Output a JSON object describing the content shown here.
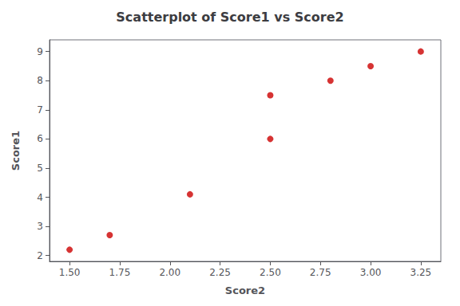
{
  "chart_data": {
    "type": "scatter",
    "title": "Scatterplot of Score1 vs Score2",
    "xlabel": "Score2",
    "ylabel": "Score1",
    "x": [
      1.5,
      1.7,
      2.1,
      2.5,
      2.5,
      2.8,
      3.0,
      3.25
    ],
    "y": [
      2.2,
      2.7,
      4.1,
      7.5,
      6.0,
      8.0,
      8.5,
      9.0
    ],
    "color": "#cc0000",
    "marker": "circle",
    "xlim": [
      1.4,
      3.35
    ],
    "ylim": [
      1.8,
      9.4
    ],
    "xticks": [
      {
        "value": 1.5,
        "label": "1.50"
      },
      {
        "value": 1.75,
        "label": "1.75"
      },
      {
        "value": 2.0,
        "label": "2.00"
      },
      {
        "value": 2.25,
        "label": "2.25"
      },
      {
        "value": 2.5,
        "label": "2.50"
      },
      {
        "value": 2.75,
        "label": "2.75"
      },
      {
        "value": 3.0,
        "label": "3.00"
      },
      {
        "value": 3.25,
        "label": "3.25"
      }
    ],
    "yticks": [
      2,
      3,
      4,
      5,
      6,
      7,
      8,
      9
    ],
    "grid": false
  }
}
